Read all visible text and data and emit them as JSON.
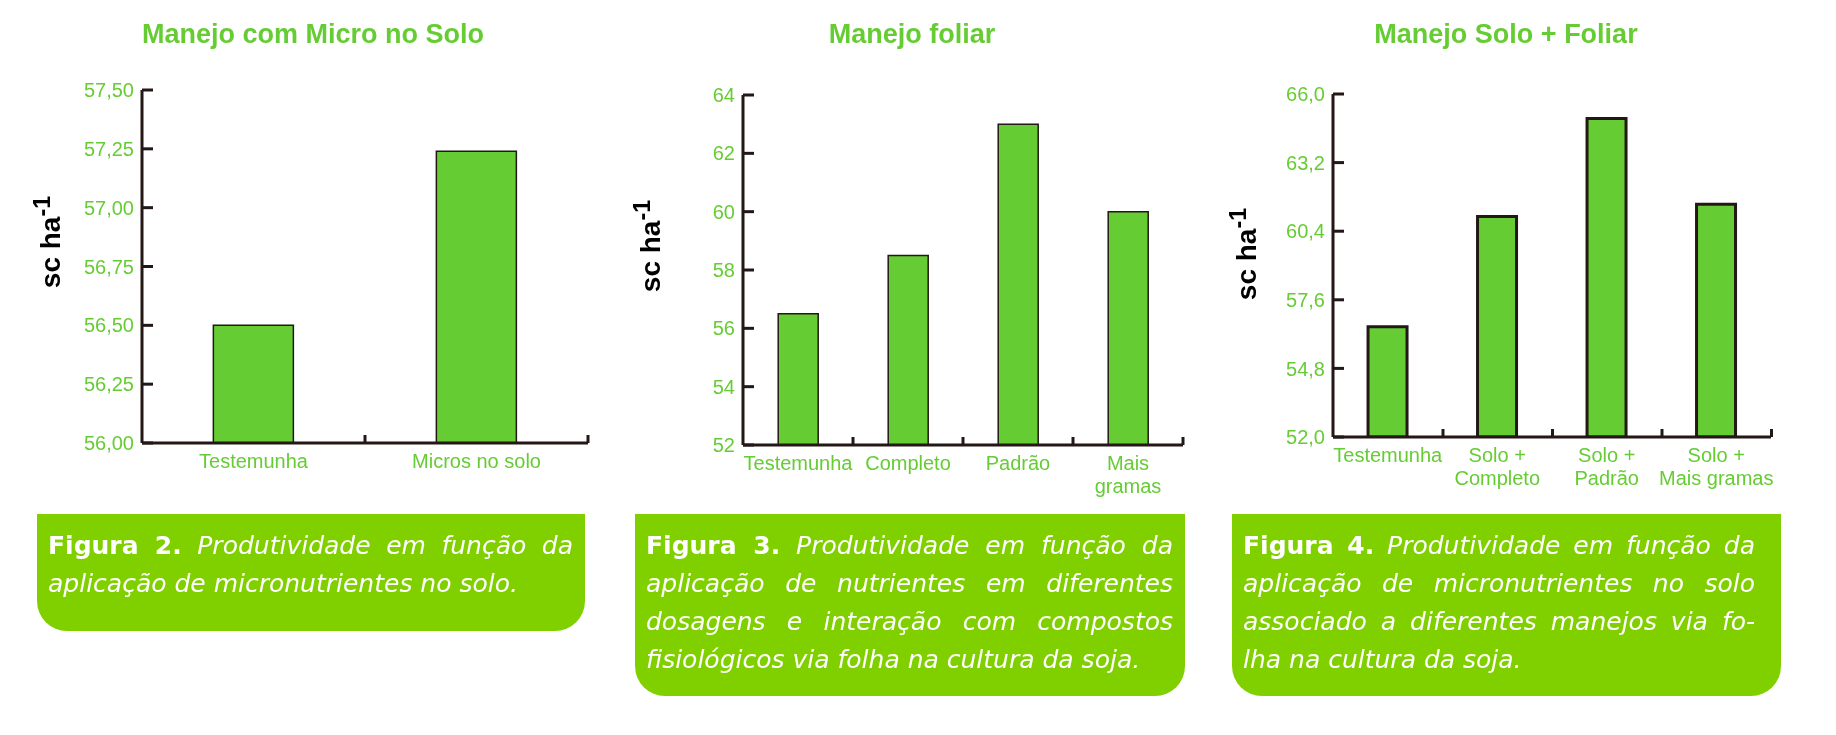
{
  "chart_data": [
    {
      "type": "bar",
      "title": "Manejo com Micro no Solo",
      "ylabel": "sc ha$^{-1}$",
      "categories": [
        "Testemunha",
        "Micros no solo"
      ],
      "values": [
        56.5,
        57.24
      ],
      "color": "#66cc33",
      "ylim": [
        56,
        57.5
      ],
      "yticks": [
        {
          "value": 56,
          "label": "56,00"
        },
        {
          "value": 56.25,
          "label": "56,25"
        },
        {
          "value": 56.5,
          "label": "56,50"
        },
        {
          "value": 56.75,
          "label": "56,75"
        },
        {
          "value": 57,
          "label": "57,00"
        },
        {
          "value": 57.25,
          "label": "57,25"
        },
        {
          "value": 57.5,
          "label": "57,50"
        }
      ],
      "annotations": [
        "Figura 2.",
        "Produtividade em função da aplicação de micronutrientes no solo."
      ]
    },
    {
      "type": "bar",
      "title": "Manejo foliar",
      "ylabel": "sc ha$^{-1}$",
      "categories": [
        "Testemunha",
        "Completo",
        "Padrão",
        "Mais\ngramas"
      ],
      "values": [
        56.5,
        58.5,
        63,
        60
      ],
      "color": "#66cc33",
      "ylim": [
        52,
        64
      ],
      "yticks": [
        52,
        54,
        56,
        58,
        60,
        62,
        64
      ],
      "annotations": [
        "Figura 3.",
        "Produtividade em função da aplicação de nutrientes em diferentes dosagens e interação com compostos fisiológicos via folha na cultura da soja."
      ]
    },
    {
      "type": "bar",
      "title": "Manejo Solo + Foliar",
      "ylabel": "sc ha$^{-1}$",
      "categories": [
        "Testemunha",
        "Solo +\nCompleto",
        "Solo +\nPadrão",
        "Solo +\nMais gramas"
      ],
      "values": [
        56.5,
        61,
        65,
        61.5
      ],
      "color": "#66cc33",
      "ylim": [
        52,
        66
      ],
      "yticks": [
        {
          "value": 52,
          "label": "52,0"
        },
        {
          "value": 54.8,
          "label": "54,8"
        },
        {
          "value": 57.6,
          "label": "57,6"
        },
        {
          "value": 60.4,
          "label": "60,4"
        },
        {
          "value": 63.2,
          "label": "63,2"
        },
        {
          "value": 66,
          "label": "66,0"
        }
      ],
      "annotations": [
        "Figura 4.",
        "Produtividade em função da aplicação de micronutrientes no solo associado a diferentes manejos via fo-lha na cultura da soja."
      ]
    }
  ]
}
